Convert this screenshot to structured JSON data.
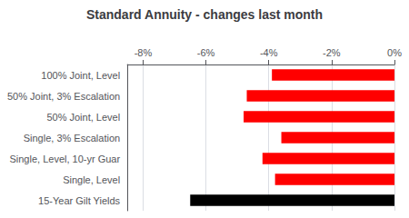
{
  "chart_data": {
    "type": "bar",
    "orientation": "horizontal",
    "title": "Standard Annuity - changes last month",
    "categories": [
      "15-Year Gilt Yields",
      "Single, Level",
      "Single, Level, 10-yr Guar",
      "Single, 3% Escalation",
      "50% Joint, Level",
      "50% Joint, 3% Escalation",
      "100% Joint, Level"
    ],
    "values": [
      -6.5,
      -3.8,
      -4.2,
      -3.6,
      -4.8,
      -4.7,
      -3.9
    ],
    "colors": [
      "#000000",
      "#ff0000",
      "#ff0000",
      "#ff0000",
      "#ff0000",
      "#ff0000",
      "#ff0000"
    ],
    "xlim": [
      -8.5,
      0.0
    ],
    "xticks": [
      {
        "value": -8,
        "label": "-8%"
      },
      {
        "value": -6,
        "label": "-6%"
      },
      {
        "value": -4,
        "label": "-4%"
      },
      {
        "value": -2,
        "label": "-2%"
      },
      {
        "value": 0,
        "label": "0%"
      }
    ],
    "grid": true
  }
}
